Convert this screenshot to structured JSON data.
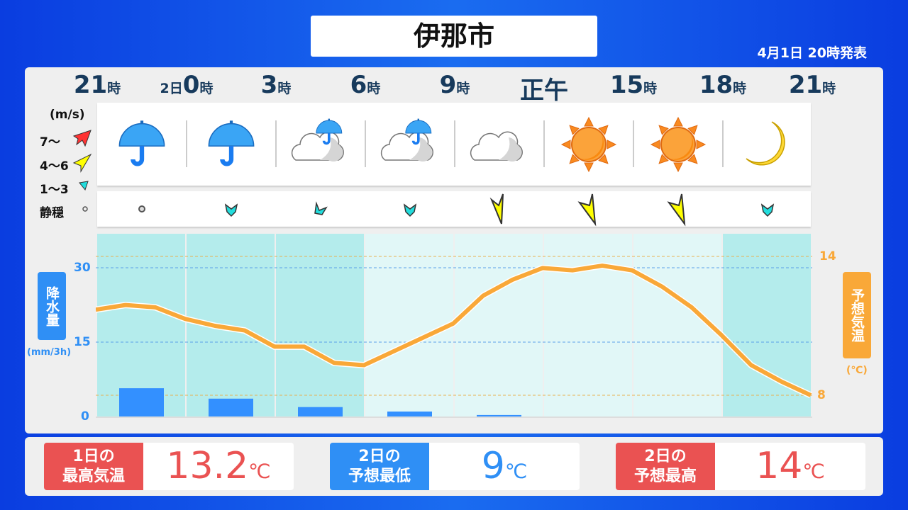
{
  "title": "伊那市",
  "issued": "4月1日  20時発表",
  "hours": [
    {
      "n": "21",
      "u": "時",
      "pre": ""
    },
    {
      "n": "0",
      "u": "時",
      "pre": "2日"
    },
    {
      "n": "3",
      "u": "時",
      "pre": ""
    },
    {
      "n": "6",
      "u": "時",
      "pre": ""
    },
    {
      "n": "9",
      "u": "時",
      "pre": ""
    },
    {
      "n": "正午",
      "u": "",
      "pre": ""
    },
    {
      "n": "15",
      "u": "時",
      "pre": ""
    },
    {
      "n": "18",
      "u": "時",
      "pre": ""
    },
    {
      "n": "21",
      "u": "時",
      "pre": ""
    }
  ],
  "weather": [
    "umbrella",
    "umbrella",
    "cloud-rain",
    "cloud-rain",
    "cloud",
    "sun",
    "sun",
    "moon"
  ],
  "wind": [
    "calm",
    "light-s",
    "light-sw",
    "light-s",
    "moderate-n",
    "moderate-nw",
    "moderate-nw",
    "light-s"
  ],
  "wind_legend": {
    "unit": "(m/s)",
    "strong": "7〜",
    "moderate": "4〜6",
    "light": "1〜3",
    "calm": "静穏"
  },
  "chart_data": {
    "type": "bar+line",
    "precip": {
      "label": "降水量",
      "unit": "(mm/3h)",
      "ticks": [
        "0",
        "15",
        "30"
      ],
      "ylim": [
        0,
        36
      ],
      "values": [
        5.7,
        3.6,
        1.9,
        1.0,
        0.3,
        0,
        0,
        0
      ],
      "color": "#3390ff"
    },
    "temp": {
      "label": "予想気温",
      "unit": "(℃)",
      "ticks": [
        "8",
        "14"
      ],
      "ylim": [
        7.1,
        15.1
      ],
      "values": [
        11.7,
        11.9,
        11.8,
        11.3,
        11.0,
        10.8,
        10.1,
        10.1,
        9.4,
        9.3,
        9.9,
        10.5,
        11.1,
        12.3,
        13.0,
        13.5,
        13.4,
        13.6,
        13.4,
        12.7,
        11.8,
        10.6,
        9.3,
        8.6,
        8.0
      ],
      "color": "#f9a838"
    }
  },
  "cards": [
    {
      "label": "1日の\n最高気温",
      "value": "13.2",
      "unit": "℃",
      "color": "#ea5252"
    },
    {
      "label": "2日の\n予想最低",
      "value": "9",
      "unit": "℃",
      "color": "#2f8ff5"
    },
    {
      "label": "2日の\n予想最高",
      "value": "14",
      "unit": "℃",
      "color": "#ea5252"
    }
  ]
}
